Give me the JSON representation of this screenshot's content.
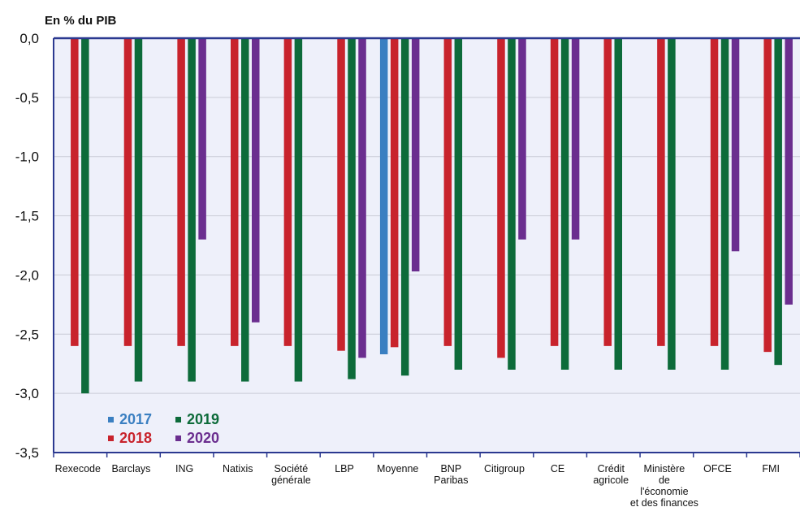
{
  "chart_data": {
    "type": "bar",
    "ylabel": "En % du PIB",
    "ylim": [
      -3.5,
      0
    ],
    "yticks": [
      "0,0",
      "-0,5",
      "-1,0",
      "-1,5",
      "-2,0",
      "-2,5",
      "-3,0",
      "-3,5"
    ],
    "ytick_values": [
      0,
      -0.5,
      -1.0,
      -1.5,
      -2.0,
      -2.5,
      -3.0,
      -3.5
    ],
    "categories": [
      [
        "Rexecode"
      ],
      [
        "Barclays"
      ],
      [
        "ING"
      ],
      [
        "Natixis"
      ],
      [
        "Société",
        "générale"
      ],
      [
        "LBP"
      ],
      [
        "Moyenne"
      ],
      [
        "BNP",
        "Paribas"
      ],
      [
        "Citigroup"
      ],
      [
        "CE"
      ],
      [
        "Crédit",
        "agricole"
      ],
      [
        "Ministère",
        "de",
        "l'économie",
        "et des  finances"
      ],
      [
        "OFCE"
      ],
      [
        "FMI"
      ]
    ],
    "grid": true,
    "legend_position": "bottom-left",
    "series": [
      {
        "name": "2017",
        "color": "#3a7fc1",
        "values": [
          null,
          null,
          null,
          null,
          null,
          null,
          -2.67,
          null,
          null,
          null,
          null,
          null,
          null,
          null
        ]
      },
      {
        "name": "2018",
        "color": "#c8232c",
        "values": [
          -2.6,
          -2.6,
          -2.6,
          -2.6,
          -2.6,
          -2.64,
          -2.61,
          -2.6,
          -2.7,
          -2.6,
          -2.6,
          -2.6,
          -2.6,
          -2.65
        ]
      },
      {
        "name": "2019",
        "color": "#0d6b3a",
        "values": [
          -3.0,
          -2.9,
          -2.9,
          -2.9,
          -2.9,
          -2.88,
          -2.85,
          -2.8,
          -2.8,
          -2.8,
          -2.8,
          -2.8,
          -2.8,
          -2.76
        ]
      },
      {
        "name": "2020",
        "color": "#6b2e8f",
        "values": [
          null,
          null,
          -1.7,
          -2.4,
          null,
          -2.7,
          -1.97,
          null,
          -1.7,
          -1.7,
          null,
          null,
          -1.8,
          -2.25
        ]
      }
    ],
    "legend_order": [
      "2017",
      "2019",
      "2018",
      "2020"
    ]
  }
}
